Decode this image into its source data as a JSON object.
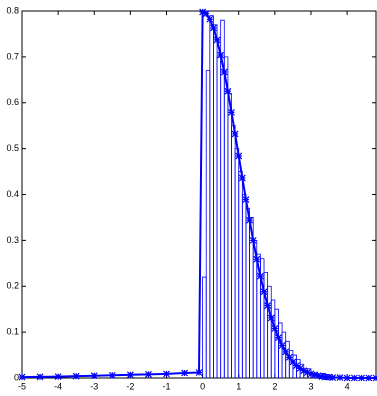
{
  "chart_data": {
    "type": "histogram",
    "xlim": [
      -5,
      4.8
    ],
    "ylim": [
      0,
      0.8
    ],
    "xticks": [
      -5,
      -4,
      -3,
      -2,
      -1,
      0,
      1,
      2,
      3,
      4
    ],
    "yticks": [
      0,
      0.1,
      0.2,
      0.3,
      0.4,
      0.5,
      0.6,
      0.7,
      0.8
    ],
    "grid": false,
    "bins": [
      0,
      0.1,
      0.2,
      0.3,
      0.4,
      0.5,
      0.6,
      0.7,
      0.8,
      0.9,
      1.0,
      1.1,
      1.2,
      1.3,
      1.4,
      1.5,
      1.6,
      1.7,
      1.8,
      1.9,
      2.0,
      2.1,
      2.2,
      2.3,
      2.4,
      2.5,
      2.6,
      2.7,
      2.8,
      2.9,
      3.0,
      3.1,
      3.2,
      3.3,
      3.4
    ],
    "counts": [
      0.22,
      0.67,
      0.79,
      0.77,
      0.7,
      0.78,
      0.7,
      0.62,
      0.55,
      0.5,
      0.45,
      0.4,
      0.37,
      0.35,
      0.3,
      0.27,
      0.26,
      0.23,
      0.2,
      0.17,
      0.15,
      0.12,
      0.1,
      0.08,
      0.06,
      0.05,
      0.04,
      0.03,
      0.02,
      0.02,
      0.01,
      0.01,
      0.0,
      0.01
    ],
    "color": "#0000ff",
    "curve": {
      "color": "#0000ff",
      "x": [
        -5,
        -4.5,
        -4,
        -3.5,
        -3,
        -2.5,
        -2,
        -1.5,
        -1,
        -0.5,
        -0.1,
        0,
        0.1,
        0.2,
        0.3,
        0.4,
        0.5,
        0.6,
        0.7,
        0.8,
        0.9,
        1.0,
        1.1,
        1.2,
        1.3,
        1.4,
        1.5,
        1.6,
        1.7,
        1.8,
        1.9,
        2.0,
        2.1,
        2.2,
        2.3,
        2.4,
        2.5,
        2.6,
        2.7,
        2.8,
        2.9,
        3.0,
        3.1,
        3.2,
        3.3,
        3.4,
        3.5,
        3.6,
        3.8,
        4.0,
        4.2,
        4.4,
        4.6,
        4.8
      ],
      "values": [
        0.002,
        0.0025,
        0.003,
        0.004,
        0.005,
        0.006,
        0.007,
        0.008,
        0.009,
        0.011,
        0.012,
        0.798,
        0.794,
        0.782,
        0.763,
        0.737,
        0.704,
        0.667,
        0.625,
        0.579,
        0.532,
        0.484,
        0.436,
        0.389,
        0.344,
        0.3,
        0.259,
        0.222,
        0.188,
        0.158,
        0.131,
        0.108,
        0.088,
        0.071,
        0.057,
        0.045,
        0.035,
        0.027,
        0.021,
        0.016,
        0.012,
        0.009,
        0.007,
        0.005,
        0.003,
        0.002,
        0.002,
        0.001,
        0.001,
        0.0,
        0.0,
        0.0,
        0.0,
        0.0
      ]
    }
  }
}
